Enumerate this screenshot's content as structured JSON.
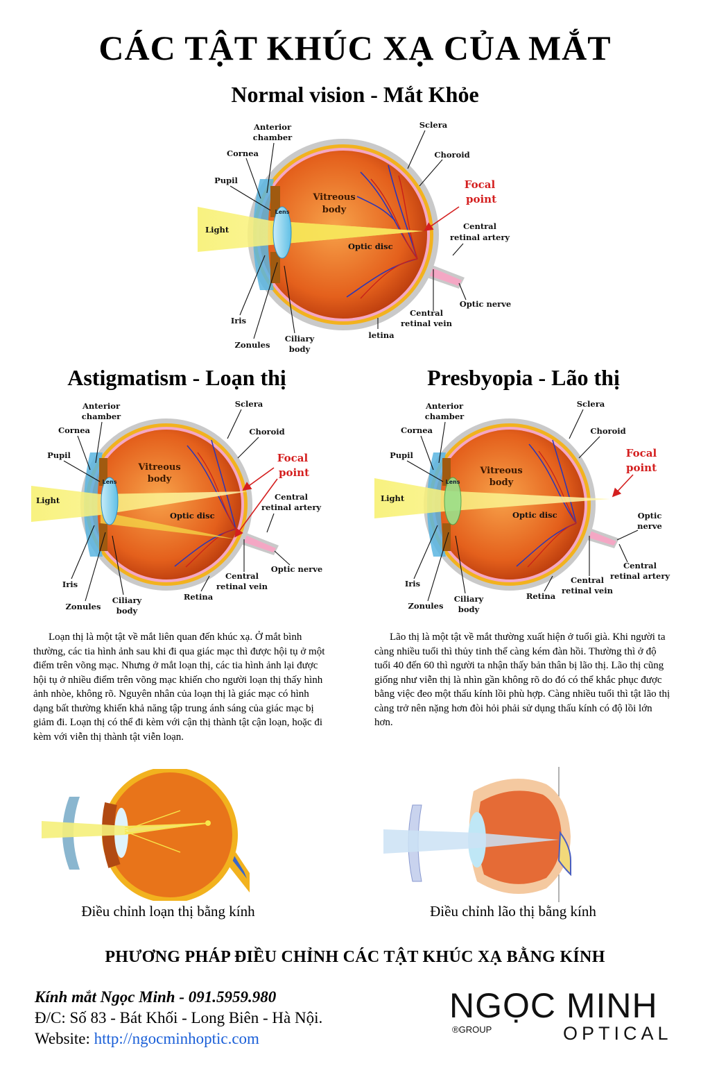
{
  "title": "CÁC TẬT KHÚC XẠ CỦA MẮT",
  "normal": {
    "heading": "Normal vision - Mắt Khỏe",
    "labels": {
      "anterior1": "Anterior",
      "anterior2": "chamber",
      "cornea": "Cornea",
      "pupil": "Pupil",
      "light": "Light",
      "lens": "Lens",
      "vitreous1": "Vitreous",
      "vitreous2": "body",
      "sclera": "Sclera",
      "choroid": "Choroid",
      "focal1": "Focal",
      "focal2": "point",
      "cra1": "Central",
      "cra2": "retinal artery",
      "optic_disc": "Optic disc",
      "optic_nerve": "Optic nerve",
      "crv1": "Central",
      "crv2": "retinal vein",
      "retina": "letina",
      "iris": "Iris",
      "zonules": "Zonules",
      "ciliary1": "Ciliary",
      "ciliary2": "body"
    }
  },
  "astig": {
    "heading": "Astigmatism - Loạn thị",
    "labels": {
      "anterior1": "Anterior",
      "anterior2": "chamber",
      "cornea": "Cornea",
      "pupil": "Pupil",
      "light": "Light",
      "lens": "Lens",
      "vitreous1": "Vitreous",
      "vitreous2": "body",
      "sclera": "Sclera",
      "choroid": "Choroid",
      "focal1": "Focal",
      "focal2": "point",
      "cra1": "Central",
      "cra2": "retinal artery",
      "optic_disc": "Optic disc",
      "optic_nerve": "Optic nerve",
      "crv1": "Central",
      "crv2": "retinal vein",
      "retina": "Retina",
      "iris": "Iris",
      "zonules": "Zonules",
      "ciliary1": "Ciliary",
      "ciliary2": "body"
    },
    "text": "Loạn thị là một tật về mắt liên quan đến khúc xạ. Ở mắt bình thường, các tia hình ảnh sau khi đi qua giác mạc thì được hội tụ ở một điểm trên võng mạc. Nhưng ở mắt loạn thị, các tia hình ảnh lại được hội tụ ở nhiều điểm trên võng mạc khiến cho người loạn thị thấy hình ảnh nhòe, không rõ. Nguyên nhân của loạn thị là giác mạc có hình dạng bất thường khiến khả năng tập trung ánh sáng của giác mạc bị giảm đi. Loạn thị có thể đi kèm với cận thị thành tật cận loạn, hoặc đi kèm với viễn thị thành tật viễn loạn.",
    "caption": "Điều chỉnh loạn thị bằng kính"
  },
  "presby": {
    "heading": "Presbyopia - Lão thị",
    "labels": {
      "anterior1": "Anterior",
      "anterior2": "chamber",
      "cornea": "Cornea",
      "pupil": "Pupil",
      "light": "Light",
      "lens": "Lens",
      "vitreous1": "Vitreous",
      "vitreous2": "body",
      "sclera": "Sclera",
      "choroid": "Choroid",
      "focal1": "Focal",
      "focal2": "point",
      "optic1": "Optic",
      "optic2": "nerve",
      "optic_disc": "Optic disc",
      "cra1": "Central",
      "cra2": "retinal artery",
      "crv1": "Central",
      "crv2": "retinal vein",
      "retina": "Retina",
      "iris": "Iris",
      "zonules": "Zonules",
      "ciliary1": "Ciliary",
      "ciliary2": "body"
    },
    "text": "Lão thị là một tật về mắt thường xuất hiện ở tuổi già. Khi người ta càng nhiều tuổi thì thủy tinh thể càng kém đàn hồi. Thường thì ở độ tuổi 40 đến 60 thì người ta nhận thấy bản thân bị lão thị. Lão thị cũng giống như viễn thị là nhìn gần không rõ do đó có thể khắc phục được bằng việc đeo một thấu kính lồi phù hợp. Càng nhiều tuổi thì tật lão thị càng trở nên nặng hơn đòi hỏi phải sử dụng thấu kính có độ lồi lớn hơn.",
    "caption": "Điều chỉnh lão thị bằng kính"
  },
  "method": "PHƯƠNG PHÁP ĐIỀU CHỈNH CÁC TẬT KHÚC XẠ BẰNG KÍNH",
  "contact": {
    "name": "Kính mắt Ngọc Minh - 091.5959.980",
    "address": "Đ/C: Số 83 - Bát Khối - Long Biên - Hà Nội.",
    "website_label": "Website: ",
    "website": "http://ngocminhoptic.com"
  },
  "logo": {
    "line1": "NGỌC MINH",
    "line2": "OPTICAL",
    "group": "®GROUP"
  },
  "colors": {
    "sclera": "#c9c9c9",
    "choroid": "#f2b21e",
    "vitreous": "#e2561a",
    "retina": "#f4a7c4",
    "light": "#f5f07a",
    "lens": "#8fd3ee",
    "focal": "#d41f1f"
  }
}
